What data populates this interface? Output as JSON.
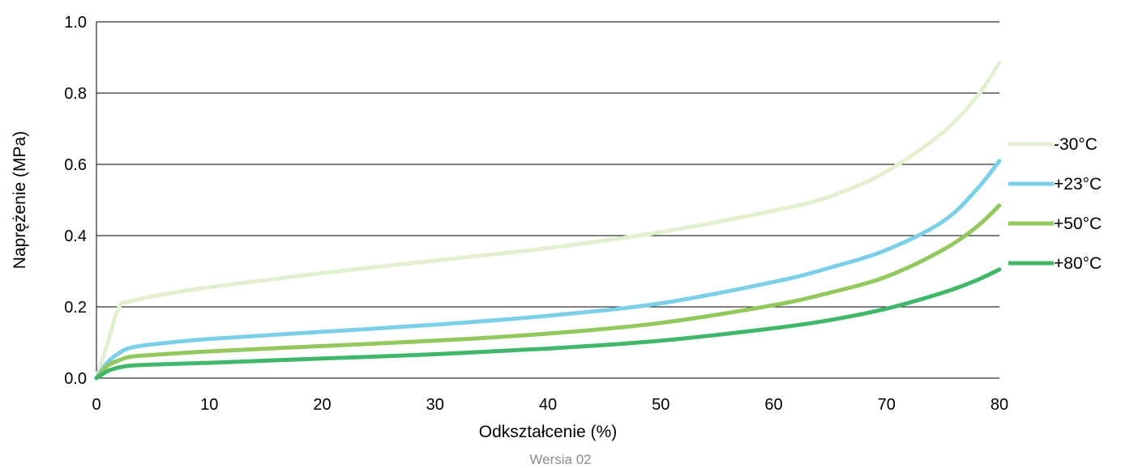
{
  "chart_data": {
    "type": "line",
    "xlabel": "Odkształcenie (%)",
    "ylabel": "Naprężenie (MPa)",
    "xlim": [
      0,
      80
    ],
    "ylim": [
      0,
      1.0
    ],
    "xticks": [
      "0",
      "10",
      "20",
      "30",
      "40",
      "50",
      "60",
      "70",
      "80"
    ],
    "yticks": [
      "0.0",
      "0.2",
      "0.4",
      "0.6",
      "0.8",
      "1.0"
    ],
    "grid": "horizontal",
    "legend_position": "right",
    "series": [
      {
        "name": "-30°C",
        "color": "#e2f0cf",
        "x": [
          0,
          1,
          2,
          3,
          5,
          10,
          20,
          30,
          40,
          50,
          60,
          65,
          70,
          75,
          78,
          80
        ],
        "y": [
          0,
          0.1,
          0.2,
          0.215,
          0.23,
          0.255,
          0.295,
          0.33,
          0.365,
          0.41,
          0.47,
          0.51,
          0.58,
          0.69,
          0.79,
          0.885
        ]
      },
      {
        "name": "+23°C",
        "color": "#7ccfe8",
        "x": [
          0,
          1,
          2,
          3,
          5,
          10,
          20,
          30,
          40,
          50,
          60,
          65,
          70,
          75,
          78,
          80
        ],
        "y": [
          0,
          0.045,
          0.07,
          0.085,
          0.095,
          0.11,
          0.13,
          0.15,
          0.175,
          0.21,
          0.27,
          0.31,
          0.36,
          0.44,
          0.53,
          0.61
        ]
      },
      {
        "name": "+50°C",
        "color": "#92c85c",
        "x": [
          0,
          1,
          2,
          3,
          5,
          10,
          20,
          30,
          40,
          50,
          60,
          65,
          70,
          75,
          78,
          80
        ],
        "y": [
          0,
          0.035,
          0.05,
          0.06,
          0.065,
          0.075,
          0.09,
          0.105,
          0.125,
          0.155,
          0.205,
          0.24,
          0.285,
          0.36,
          0.425,
          0.485
        ]
      },
      {
        "name": "+80°C",
        "color": "#3fb86a",
        "x": [
          0,
          1,
          2,
          3,
          5,
          10,
          20,
          30,
          40,
          50,
          60,
          65,
          70,
          75,
          78,
          80
        ],
        "y": [
          0,
          0.02,
          0.03,
          0.035,
          0.038,
          0.043,
          0.055,
          0.067,
          0.083,
          0.105,
          0.14,
          0.163,
          0.195,
          0.24,
          0.275,
          0.305
        ]
      }
    ]
  },
  "footer": {
    "text": "Wersia 02"
  }
}
